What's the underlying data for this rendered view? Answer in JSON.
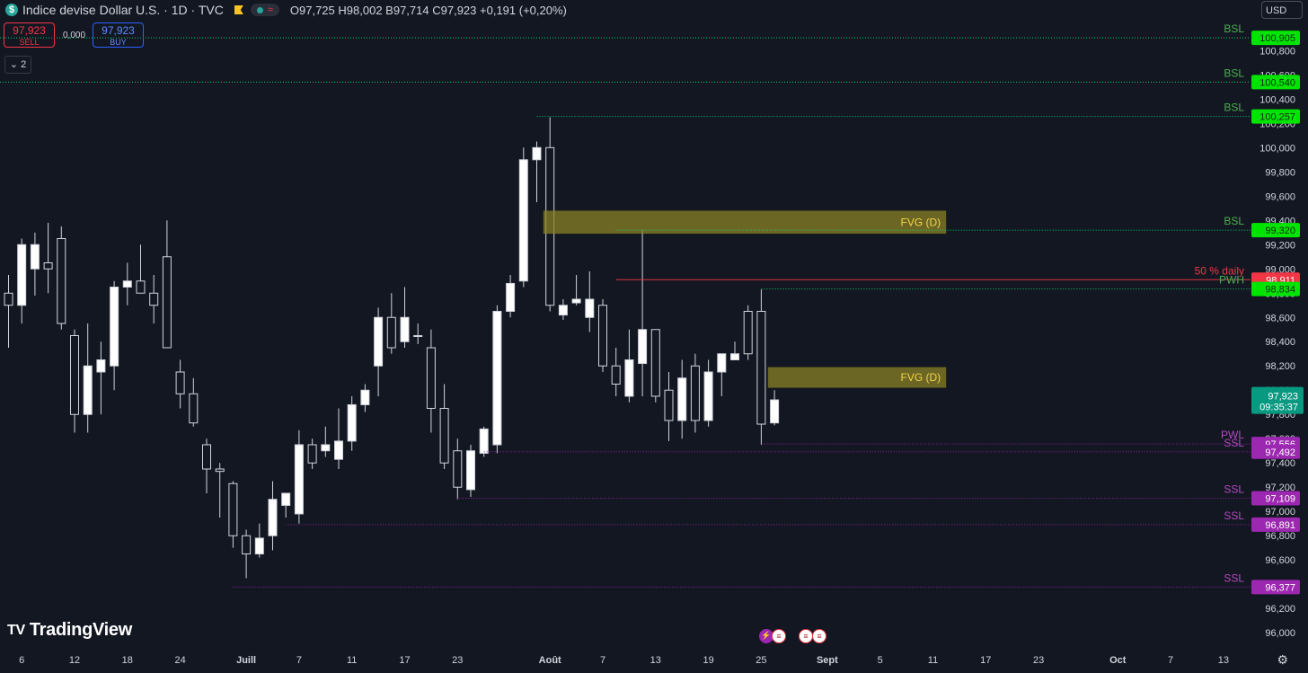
{
  "header": {
    "symbol_title": "Indice devise Dollar U.S. · 1D · TVC",
    "ohlc": {
      "O": "97,725",
      "H": "98,002",
      "B": "97,714",
      "C": "97,923",
      "change": "+0,191 (+0,20%)"
    }
  },
  "trade": {
    "sell_price": "97,923",
    "sell_label": "SELL",
    "spread": "0,000",
    "buy_price": "97,923",
    "buy_label": "BUY"
  },
  "indicators_count": "2",
  "currency": "USD",
  "brand": "TradingView",
  "colors": {
    "bg": "#131722",
    "candle_border": "#d1d4dc",
    "bsl": "#00e676",
    "ssl": "#9c27b0",
    "fvg": "#6b6520",
    "mid": "#f23645",
    "last": "#089981"
  },
  "chart_data": {
    "type": "candlestick",
    "title": "Indice devise Dollar U.S. · 1D · TVC",
    "ylim": [
      95.92,
      101.08
    ],
    "y_ticks": [
      "96,000",
      "96,200",
      "96,400",
      "96,600",
      "96,800",
      "97,000",
      "97,200",
      "97,400",
      "97,600",
      "97,800",
      "98,000",
      "98,200",
      "98,400",
      "98,600",
      "98,800",
      "99,000",
      "99,200",
      "99,400",
      "99,600",
      "99,800",
      "100,000",
      "100,200",
      "100,400",
      "100,600",
      "100,800"
    ],
    "x_ticks": [
      {
        "label": "6",
        "i": 1
      },
      {
        "label": "12",
        "i": 5
      },
      {
        "label": "18",
        "i": 9
      },
      {
        "label": "24",
        "i": 13
      },
      {
        "label": "Juill",
        "i": 18,
        "bold": true
      },
      {
        "label": "7",
        "i": 22
      },
      {
        "label": "11",
        "i": 26
      },
      {
        "label": "17",
        "i": 30
      },
      {
        "label": "23",
        "i": 34
      },
      {
        "label": "Août",
        "i": 41,
        "bold": true
      },
      {
        "label": "7",
        "i": 45
      },
      {
        "label": "13",
        "i": 49
      },
      {
        "label": "19",
        "i": 53
      },
      {
        "label": "25",
        "i": 57
      },
      {
        "label": "Sept",
        "i": 62,
        "bold": true
      },
      {
        "label": "5",
        "i": 66
      },
      {
        "label": "11",
        "i": 70
      },
      {
        "label": "17",
        "i": 74
      },
      {
        "label": "23",
        "i": 78
      },
      {
        "label": "Oct",
        "i": 84,
        "bold": true
      },
      {
        "label": "7",
        "i": 88
      },
      {
        "label": "13",
        "i": 92
      }
    ],
    "candles": [
      {
        "o": 98.8,
        "h": 98.95,
        "l": 98.35,
        "c": 98.7
      },
      {
        "o": 98.7,
        "h": 99.25,
        "l": 98.55,
        "c": 99.2
      },
      {
        "o": 99.0,
        "h": 99.3,
        "l": 98.78,
        "c": 99.2
      },
      {
        "o": 99.05,
        "h": 99.38,
        "l": 98.8,
        "c": 99.0
      },
      {
        "o": 99.25,
        "h": 99.35,
        "l": 98.5,
        "c": 98.55
      },
      {
        "o": 98.45,
        "h": 98.5,
        "l": 97.65,
        "c": 97.8
      },
      {
        "o": 97.8,
        "h": 98.55,
        "l": 97.65,
        "c": 98.2
      },
      {
        "o": 98.15,
        "h": 98.4,
        "l": 97.8,
        "c": 98.25
      },
      {
        "o": 98.2,
        "h": 98.9,
        "l": 98.0,
        "c": 98.85
      },
      {
        "o": 98.85,
        "h": 99.05,
        "l": 98.7,
        "c": 98.9
      },
      {
        "o": 98.9,
        "h": 99.2,
        "l": 98.8,
        "c": 98.8
      },
      {
        "o": 98.8,
        "h": 98.95,
        "l": 98.55,
        "c": 98.7
      },
      {
        "o": 99.1,
        "h": 99.4,
        "l": 98.35,
        "c": 98.35
      },
      {
        "o": 98.15,
        "h": 98.25,
        "l": 97.85,
        "c": 97.97
      },
      {
        "o": 97.97,
        "h": 98.1,
        "l": 97.7,
        "c": 97.73
      },
      {
        "o": 97.55,
        "h": 97.6,
        "l": 97.15,
        "c": 97.35
      },
      {
        "o": 97.35,
        "h": 97.4,
        "l": 96.95,
        "c": 97.33
      },
      {
        "o": 97.23,
        "h": 97.25,
        "l": 96.7,
        "c": 96.8
      },
      {
        "o": 96.8,
        "h": 96.85,
        "l": 96.45,
        "c": 96.65
      },
      {
        "o": 96.65,
        "h": 96.9,
        "l": 96.62,
        "c": 96.78
      },
      {
        "o": 96.8,
        "h": 97.25,
        "l": 96.68,
        "c": 97.1
      },
      {
        "o": 97.05,
        "h": 97.15,
        "l": 96.95,
        "c": 97.15
      },
      {
        "o": 96.98,
        "h": 97.67,
        "l": 96.9,
        "c": 97.55
      },
      {
        "o": 97.55,
        "h": 97.6,
        "l": 97.35,
        "c": 97.4
      },
      {
        "o": 97.5,
        "h": 97.7,
        "l": 97.45,
        "c": 97.55
      },
      {
        "o": 97.43,
        "h": 97.85,
        "l": 97.35,
        "c": 97.58
      },
      {
        "o": 97.58,
        "h": 97.95,
        "l": 97.5,
        "c": 97.88
      },
      {
        "o": 97.88,
        "h": 98.05,
        "l": 97.82,
        "c": 98.0
      },
      {
        "o": 98.2,
        "h": 98.68,
        "l": 97.95,
        "c": 98.6
      },
      {
        "o": 98.6,
        "h": 98.8,
        "l": 98.3,
        "c": 98.35
      },
      {
        "o": 98.4,
        "h": 98.85,
        "l": 98.35,
        "c": 98.6
      },
      {
        "o": 98.45,
        "h": 98.55,
        "l": 98.38,
        "c": 98.45
      },
      {
        "o": 98.35,
        "h": 98.5,
        "l": 97.65,
        "c": 97.85
      },
      {
        "o": 97.85,
        "h": 98.05,
        "l": 97.35,
        "c": 97.4
      },
      {
        "o": 97.5,
        "h": 97.6,
        "l": 97.1,
        "c": 97.2
      },
      {
        "o": 97.18,
        "h": 97.55,
        "l": 97.12,
        "c": 97.5
      },
      {
        "o": 97.48,
        "h": 97.7,
        "l": 97.45,
        "c": 97.68
      },
      {
        "o": 97.55,
        "h": 98.7,
        "l": 97.48,
        "c": 98.65
      },
      {
        "o": 98.65,
        "h": 98.95,
        "l": 98.6,
        "c": 98.88
      },
      {
        "o": 98.9,
        "h": 100.0,
        "l": 98.85,
        "c": 99.9
      },
      {
        "o": 99.9,
        "h": 100.05,
        "l": 99.55,
        "c": 100.0
      },
      {
        "o": 100.0,
        "h": 100.25,
        "l": 98.65,
        "c": 98.7
      },
      {
        "o": 98.62,
        "h": 98.75,
        "l": 98.58,
        "c": 98.7
      },
      {
        "o": 98.72,
        "h": 98.95,
        "l": 98.7,
        "c": 98.75
      },
      {
        "o": 98.6,
        "h": 98.98,
        "l": 98.48,
        "c": 98.75
      },
      {
        "o": 98.7,
        "h": 98.75,
        "l": 98.15,
        "c": 98.2
      },
      {
        "o": 98.2,
        "h": 98.35,
        "l": 97.95,
        "c": 98.05
      },
      {
        "o": 97.95,
        "h": 98.5,
        "l": 97.9,
        "c": 98.25
      },
      {
        "o": 98.22,
        "h": 99.32,
        "l": 97.95,
        "c": 98.5
      },
      {
        "o": 98.5,
        "h": 98.5,
        "l": 97.9,
        "c": 97.95
      },
      {
        "o": 98.0,
        "h": 98.15,
        "l": 97.58,
        "c": 97.75
      },
      {
        "o": 97.75,
        "h": 98.25,
        "l": 97.6,
        "c": 98.1
      },
      {
        "o": 98.2,
        "h": 98.3,
        "l": 97.65,
        "c": 97.75
      },
      {
        "o": 97.75,
        "h": 98.25,
        "l": 97.7,
        "c": 98.15
      },
      {
        "o": 98.15,
        "h": 98.25,
        "l": 97.95,
        "c": 98.3
      },
      {
        "o": 98.25,
        "h": 98.4,
        "l": 98.25,
        "c": 98.3
      },
      {
        "o": 98.65,
        "h": 98.7,
        "l": 98.25,
        "c": 98.3
      },
      {
        "o": 98.65,
        "h": 98.83,
        "l": 97.55,
        "c": 97.72
      },
      {
        "o": 97.73,
        "h": 98.0,
        "l": 97.71,
        "c": 97.92
      }
    ],
    "fvgs": [
      {
        "label": "FVG (D)",
        "from_i": 40.5,
        "to_i": 71,
        "top": 99.48,
        "bottom": 99.29
      },
      {
        "label": "FVG (D)",
        "from_i": 57.5,
        "to_i": 71,
        "top": 98.19,
        "bottom": 98.02
      }
    ],
    "levels": [
      {
        "label": "BSL",
        "value": 100.905,
        "price": "100,905",
        "from_i": -1,
        "kind": "bsl"
      },
      {
        "label": "BSL",
        "value": 100.54,
        "price": "100,540",
        "from_i": -1,
        "kind": "bsl"
      },
      {
        "label": "BSL",
        "value": 100.257,
        "price": "100,257",
        "from_i": 40,
        "kind": "bsl"
      },
      {
        "label": "BSL",
        "value": 99.32,
        "price": "99,320",
        "from_i": 46,
        "kind": "bsl"
      },
      {
        "label": "50 % daily",
        "value": 98.911,
        "price": "98,911",
        "from_i": 46,
        "kind": "mid"
      },
      {
        "label": "PWH",
        "value": 98.834,
        "price": "98,834",
        "from_i": 57,
        "kind": "bsl"
      },
      {
        "label": "PWL",
        "value": 97.556,
        "price": "97,556",
        "from_i": 57,
        "kind": "ssl"
      },
      {
        "label": "SSL",
        "value": 97.492,
        "price": "97,492",
        "from_i": 36,
        "kind": "ssl"
      },
      {
        "label": "SSL",
        "value": 97.109,
        "price": "97,109",
        "from_i": 34,
        "kind": "ssl"
      },
      {
        "label": "SSL",
        "value": 96.891,
        "price": "96,891",
        "from_i": 21,
        "kind": "ssl"
      },
      {
        "label": "SSL",
        "value": 96.377,
        "price": "96,377",
        "from_i": 17,
        "kind": "ssl"
      }
    ],
    "last_price": {
      "value": 97.923,
      "price": "97,923",
      "countdown": "09:35:37"
    }
  }
}
